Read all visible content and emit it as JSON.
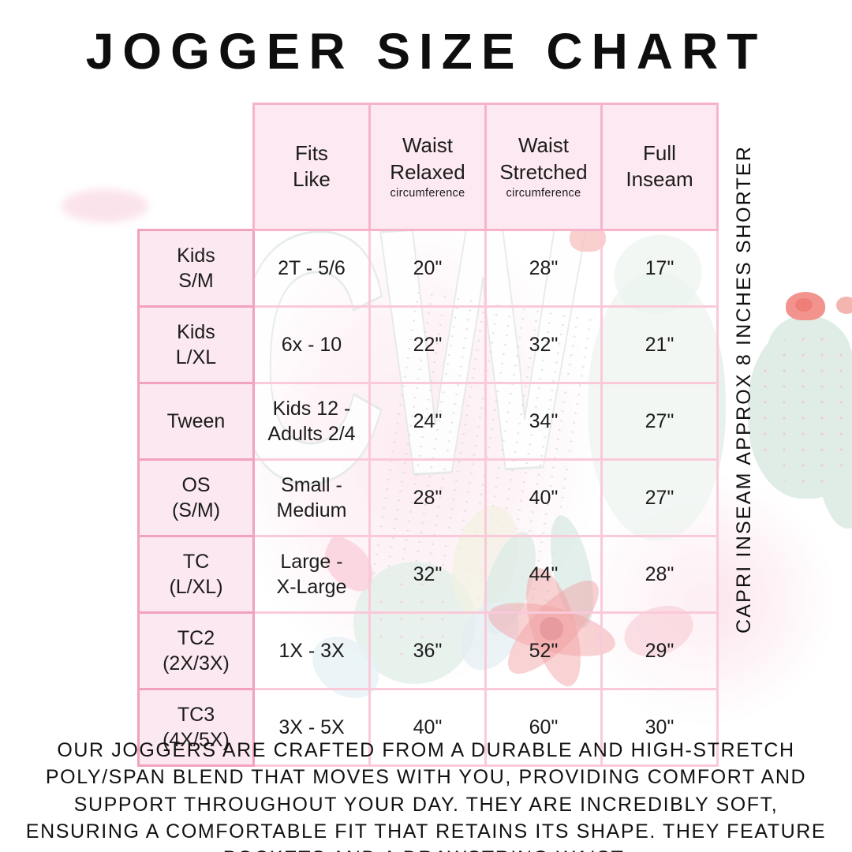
{
  "title": "JOGGER SIZE CHART",
  "table": {
    "columns": [
      {
        "label": "Fits\nLike",
        "sub": ""
      },
      {
        "label": "Waist\nRelaxed",
        "sub": "circumference"
      },
      {
        "label": "Waist\nStretched",
        "sub": "circumference"
      },
      {
        "label": "Full\nInseam",
        "sub": ""
      }
    ],
    "rows": [
      {
        "size": "Kids\nS/M",
        "fits_like": "2T - 5/6",
        "waist_relaxed": "20\"",
        "waist_stretched": "28\"",
        "full_inseam": "17\""
      },
      {
        "size": "Kids\nL/XL",
        "fits_like": "6x - 10",
        "waist_relaxed": "22\"",
        "waist_stretched": "32\"",
        "full_inseam": "21\""
      },
      {
        "size": "Tween",
        "fits_like": "Kids 12 -\nAdults 2/4",
        "waist_relaxed": "24\"",
        "waist_stretched": "34\"",
        "full_inseam": "27\""
      },
      {
        "size": "OS\n(S/M)",
        "fits_like": "Small -\nMedium",
        "waist_relaxed": "28\"",
        "waist_stretched": "40\"",
        "full_inseam": "27\""
      },
      {
        "size": "TC\n(L/XL)",
        "fits_like": "Large -\nX-Large",
        "waist_relaxed": "32\"",
        "waist_stretched": "44\"",
        "full_inseam": "28\""
      },
      {
        "size": "TC2\n(2X/3X)",
        "fits_like": "1X - 3X",
        "waist_relaxed": "36\"",
        "waist_stretched": "52\"",
        "full_inseam": "29\""
      },
      {
        "size": "TC3\n(4X/5X)",
        "fits_like": "3X - 5X",
        "waist_relaxed": "40\"",
        "waist_stretched": "60\"",
        "full_inseam": "30\""
      }
    ]
  },
  "side_note": "CAPRI INSEAM APPROX 8 INCHES SHORTER",
  "description": "OUR JOGGERS ARE CRAFTED FROM A DURABLE AND HIGH-STRETCH POLY/SPAN BLEND THAT MOVES WITH YOU, PROVIDING COMFORT AND SUPPORT THROUGHOUT YOUR DAY. THEY ARE INCREDIBLY SOFT, ENSURING A COMFORTABLE FIT THAT RETAINS ITS SHAPE. THEY FEATURE POCKETS AND A DRAWSTRING WAIST.",
  "watermark": {
    "initials": "CW"
  },
  "colors": {
    "table_border_light": "#fac9da",
    "table_border_header": "#f7b3ca",
    "table_border_rowheader": "#f2a1bf",
    "header_cell_bg": "#fde9f1",
    "row_header_bg": "#fce8f0",
    "text": "#1c1c1c",
    "watermark_teal": "#dcebe3",
    "watermark_red": "#e75e63"
  }
}
